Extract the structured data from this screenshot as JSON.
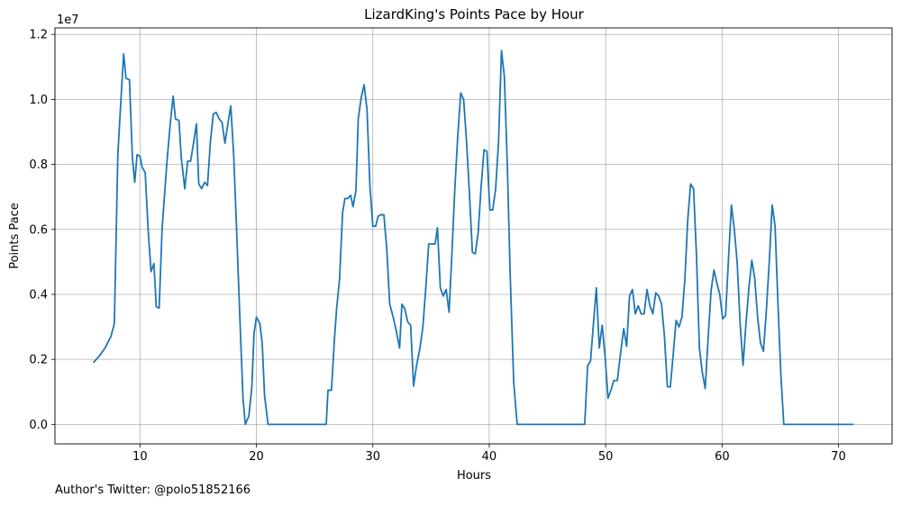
{
  "chart_data": {
    "type": "line",
    "title": "LizardKing's Points Pace by Hour",
    "xlabel": "Hours",
    "ylabel": "Points Pace",
    "y_scale_label": "1e7",
    "xlim": [
      2.7,
      74.6
    ],
    "ylim": [
      -600000,
      12200000
    ],
    "grid": true,
    "line_color": "#1f77b4",
    "x_ticks": [
      10,
      20,
      30,
      40,
      50,
      60,
      70
    ],
    "x_tick_labels": [
      "10",
      "20",
      "30",
      "40",
      "50",
      "60",
      "70"
    ],
    "y_ticks": [
      0,
      2000000,
      4000000,
      6000000,
      8000000,
      10000000,
      12000000
    ],
    "y_tick_labels": [
      "0.0",
      "0.2",
      "0.4",
      "0.6",
      "0.8",
      "1.0",
      "1.2"
    ],
    "series": [
      {
        "points": [
          [
            6.0,
            1900000
          ],
          [
            6.5,
            2100000
          ],
          [
            7.0,
            2350000
          ],
          [
            7.5,
            2700000
          ],
          [
            7.8,
            3100000
          ],
          [
            8.1,
            8300000
          ],
          [
            8.4,
            10200000
          ],
          [
            8.6,
            11400000
          ],
          [
            8.8,
            10650000
          ],
          [
            9.1,
            10600000
          ],
          [
            9.35,
            8200000
          ],
          [
            9.55,
            7450000
          ],
          [
            9.75,
            8300000
          ],
          [
            10.0,
            8250000
          ],
          [
            10.2,
            7900000
          ],
          [
            10.45,
            7750000
          ],
          [
            10.7,
            6000000
          ],
          [
            10.95,
            4700000
          ],
          [
            11.2,
            4950000
          ],
          [
            11.4,
            3620000
          ],
          [
            11.65,
            3580000
          ],
          [
            11.9,
            6000000
          ],
          [
            12.3,
            8000000
          ],
          [
            12.6,
            9250000
          ],
          [
            12.85,
            10100000
          ],
          [
            13.05,
            9400000
          ],
          [
            13.35,
            9350000
          ],
          [
            13.55,
            8200000
          ],
          [
            13.85,
            7250000
          ],
          [
            14.1,
            8100000
          ],
          [
            14.35,
            8100000
          ],
          [
            14.6,
            8650000
          ],
          [
            14.85,
            9250000
          ],
          [
            15.05,
            7400000
          ],
          [
            15.3,
            7250000
          ],
          [
            15.55,
            7450000
          ],
          [
            15.8,
            7350000
          ],
          [
            16.05,
            8700000
          ],
          [
            16.3,
            9550000
          ],
          [
            16.55,
            9600000
          ],
          [
            16.8,
            9400000
          ],
          [
            17.05,
            9300000
          ],
          [
            17.3,
            8650000
          ],
          [
            17.55,
            9250000
          ],
          [
            17.8,
            9800000
          ],
          [
            18.05,
            8300000
          ],
          [
            18.3,
            6000000
          ],
          [
            18.6,
            3100000
          ],
          [
            18.85,
            800000
          ],
          [
            19.05,
            0
          ],
          [
            19.35,
            250000
          ],
          [
            19.6,
            1100000
          ],
          [
            19.8,
            2800000
          ],
          [
            20.0,
            3300000
          ],
          [
            20.3,
            3100000
          ],
          [
            20.5,
            2500000
          ],
          [
            20.7,
            900000
          ],
          [
            21.0,
            0
          ],
          [
            26.0,
            0
          ],
          [
            26.15,
            1050000
          ],
          [
            26.45,
            1050000
          ],
          [
            26.7,
            2600000
          ],
          [
            26.9,
            3600000
          ],
          [
            27.15,
            4500000
          ],
          [
            27.4,
            6500000
          ],
          [
            27.6,
            6950000
          ],
          [
            27.85,
            6950000
          ],
          [
            28.1,
            7050000
          ],
          [
            28.3,
            6700000
          ],
          [
            28.55,
            7200000
          ],
          [
            28.75,
            9400000
          ],
          [
            29.0,
            10050000
          ],
          [
            29.25,
            10450000
          ],
          [
            29.5,
            9700000
          ],
          [
            29.75,
            7350000
          ],
          [
            30.0,
            6100000
          ],
          [
            30.25,
            6100000
          ],
          [
            30.45,
            6400000
          ],
          [
            30.7,
            6450000
          ],
          [
            30.95,
            6450000
          ],
          [
            31.2,
            5400000
          ],
          [
            31.45,
            3700000
          ],
          [
            31.75,
            3300000
          ],
          [
            32.0,
            2900000
          ],
          [
            32.3,
            2350000
          ],
          [
            32.5,
            3700000
          ],
          [
            32.75,
            3550000
          ],
          [
            33.0,
            3150000
          ],
          [
            33.25,
            3050000
          ],
          [
            33.5,
            1180000
          ],
          [
            33.75,
            1800000
          ],
          [
            34.05,
            2350000
          ],
          [
            34.3,
            3000000
          ],
          [
            34.55,
            4200000
          ],
          [
            34.8,
            5550000
          ],
          [
            35.05,
            5550000
          ],
          [
            35.35,
            5550000
          ],
          [
            35.55,
            6050000
          ],
          [
            35.8,
            4200000
          ],
          [
            36.05,
            3950000
          ],
          [
            36.3,
            4150000
          ],
          [
            36.55,
            3450000
          ],
          [
            36.8,
            5300000
          ],
          [
            37.05,
            7300000
          ],
          [
            37.3,
            8900000
          ],
          [
            37.55,
            10200000
          ],
          [
            37.8,
            10000000
          ],
          [
            38.05,
            8700000
          ],
          [
            38.3,
            7100000
          ],
          [
            38.55,
            5300000
          ],
          [
            38.8,
            5250000
          ],
          [
            39.05,
            5900000
          ],
          [
            39.3,
            7300000
          ],
          [
            39.55,
            8450000
          ],
          [
            39.8,
            8400000
          ],
          [
            40.05,
            6600000
          ],
          [
            40.3,
            6600000
          ],
          [
            40.55,
            7250000
          ],
          [
            40.8,
            8700000
          ],
          [
            41.05,
            11500000
          ],
          [
            41.3,
            10700000
          ],
          [
            41.55,
            8000000
          ],
          [
            41.8,
            4600000
          ],
          [
            42.1,
            1300000
          ],
          [
            42.4,
            0
          ],
          [
            48.2,
            0
          ],
          [
            48.45,
            1800000
          ],
          [
            48.7,
            1950000
          ],
          [
            48.95,
            3100000
          ],
          [
            49.2,
            4200000
          ],
          [
            49.45,
            2350000
          ],
          [
            49.7,
            3050000
          ],
          [
            49.95,
            2100000
          ],
          [
            50.2,
            800000
          ],
          [
            50.45,
            1050000
          ],
          [
            50.7,
            1350000
          ],
          [
            51.0,
            1350000
          ],
          [
            51.3,
            2250000
          ],
          [
            51.55,
            2950000
          ],
          [
            51.8,
            2400000
          ],
          [
            52.05,
            3950000
          ],
          [
            52.3,
            4150000
          ],
          [
            52.55,
            3400000
          ],
          [
            52.8,
            3650000
          ],
          [
            53.05,
            3400000
          ],
          [
            53.3,
            3400000
          ],
          [
            53.55,
            4150000
          ],
          [
            53.8,
            3650000
          ],
          [
            54.05,
            3400000
          ],
          [
            54.3,
            4050000
          ],
          [
            54.55,
            3950000
          ],
          [
            54.8,
            3700000
          ],
          [
            55.05,
            2700000
          ],
          [
            55.3,
            1160000
          ],
          [
            55.55,
            1150000
          ],
          [
            55.8,
            2150000
          ],
          [
            56.05,
            3200000
          ],
          [
            56.3,
            3000000
          ],
          [
            56.55,
            3300000
          ],
          [
            56.8,
            4450000
          ],
          [
            57.05,
            6300000
          ],
          [
            57.3,
            7400000
          ],
          [
            57.55,
            7250000
          ],
          [
            57.8,
            5200000
          ],
          [
            58.05,
            2350000
          ],
          [
            58.3,
            1600000
          ],
          [
            58.55,
            1100000
          ],
          [
            58.8,
            2650000
          ],
          [
            59.05,
            4100000
          ],
          [
            59.3,
            4750000
          ],
          [
            59.55,
            4350000
          ],
          [
            59.8,
            4000000
          ],
          [
            60.05,
            3250000
          ],
          [
            60.3,
            3350000
          ],
          [
            60.55,
            5100000
          ],
          [
            60.8,
            6750000
          ],
          [
            61.05,
            6000000
          ],
          [
            61.3,
            4950000
          ],
          [
            61.55,
            3100000
          ],
          [
            61.8,
            1820000
          ],
          [
            62.05,
            3100000
          ],
          [
            62.3,
            4200000
          ],
          [
            62.55,
            5050000
          ],
          [
            62.8,
            4500000
          ],
          [
            63.05,
            3300000
          ],
          [
            63.3,
            2500000
          ],
          [
            63.55,
            2250000
          ],
          [
            63.8,
            3500000
          ],
          [
            64.05,
            5000000
          ],
          [
            64.3,
            6750000
          ],
          [
            64.55,
            6100000
          ],
          [
            64.8,
            3700000
          ],
          [
            65.05,
            1500000
          ],
          [
            65.3,
            0
          ],
          [
            71.3,
            0
          ]
        ]
      }
    ]
  },
  "footer": {
    "text": "Author's Twitter: @polo51852166"
  }
}
